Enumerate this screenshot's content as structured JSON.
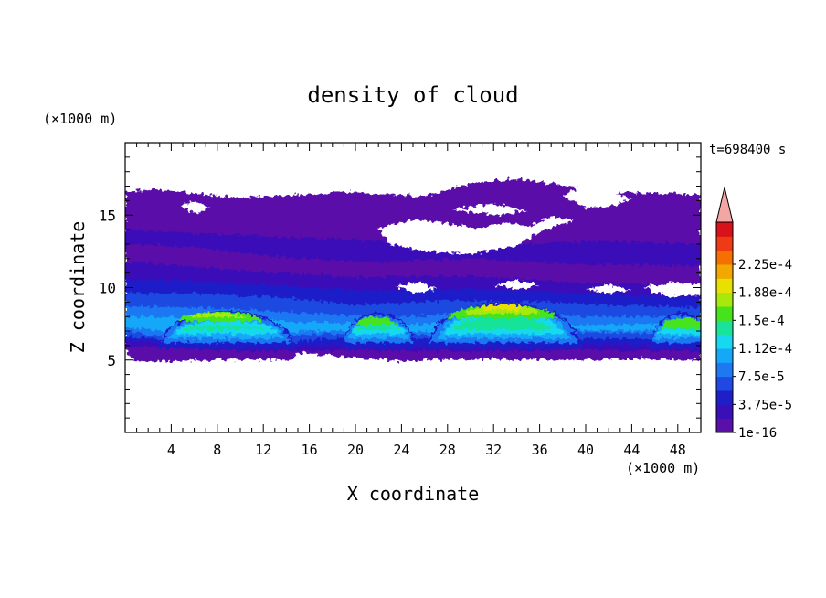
{
  "chart_data": {
    "type": "heatmap",
    "title": "density of cloud",
    "xlabel": "X coordinate",
    "ylabel": "Z coordinate",
    "x_unit": "(×1000 m)",
    "y_unit": "(×1000 m)",
    "time_label": "t=698400 s",
    "xlim": [
      0,
      50
    ],
    "ylim": [
      0,
      20
    ],
    "x_ticks": [
      4,
      8,
      12,
      16,
      20,
      24,
      28,
      32,
      36,
      40,
      44,
      48
    ],
    "y_ticks": [
      5,
      10,
      15
    ],
    "grid": false,
    "colorbar": {
      "levels": [
        1e-16,
        1.875e-05,
        3.75e-05,
        5.625e-05,
        7.5e-05,
        9.375e-05,
        0.0001125,
        0.00013125,
        0.00015,
        0.00016875,
        0.0001875,
        0.00020625,
        0.000225,
        0.00024375
      ],
      "tick_labels": [
        "1e-16",
        "3.75e-5",
        "7.5e-5",
        "1.12e-4",
        "1.5e-4",
        "1.88e-4",
        "2.25e-4"
      ],
      "colors": [
        "#5a10a8",
        "#3b0fb8",
        "#1f1fc8",
        "#1f49e0",
        "#1e78f2",
        "#15a8f8",
        "#18d8ef",
        "#19e39a",
        "#47e31a",
        "#a8e80c",
        "#e8e000",
        "#f2a800",
        "#f57000",
        "#ee3b15",
        "#d8111a"
      ],
      "overflow_color": "#f3a7a5"
    },
    "cloud_layers": [
      {
        "level": 1,
        "z_base_km": 5.0,
        "profile_km": [
          [
            0,
            5.6
          ],
          [
            1,
            4.9
          ],
          [
            3,
            4.9
          ],
          [
            8,
            5.0
          ],
          [
            14.5,
            5.0
          ],
          [
            15,
            5.5
          ],
          [
            24,
            4.9
          ],
          [
            30,
            5.1
          ],
          [
            38,
            5.0
          ],
          [
            45,
            5.1
          ],
          [
            50,
            5.0
          ]
        ]
      },
      {
        "level": 1,
        "z_top_km": 16.3,
        "note": "upper anvil layer 10-17 km with gaps near x=5, 21-31, 40-50"
      },
      {
        "level": 12,
        "peaks": [
          {
            "x_km": 8.0,
            "z_km": 8.2
          },
          {
            "x_km": 33.0,
            "z_km": 8.8
          }
        ]
      }
    ]
  }
}
